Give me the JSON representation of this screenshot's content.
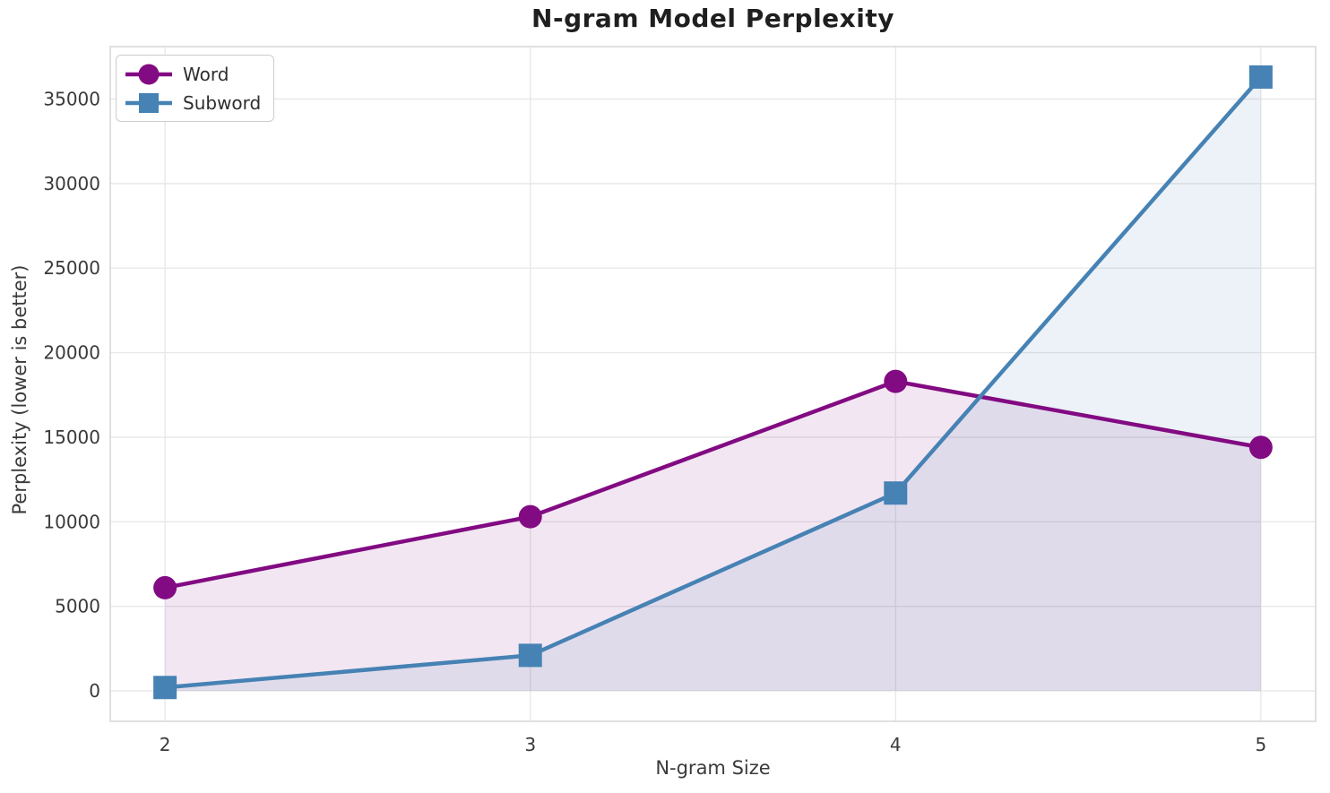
{
  "chart_data": {
    "type": "line",
    "title": "N-gram Model Perplexity",
    "xlabel": "N-gram Size",
    "ylabel": "Perplexity (lower is better)",
    "x": [
      2,
      3,
      4,
      5
    ],
    "x_tick_labels": [
      "2",
      "3",
      "4",
      "5"
    ],
    "y_ticks": [
      0,
      5000,
      10000,
      15000,
      20000,
      25000,
      30000,
      35000
    ],
    "y_tick_labels": [
      "0",
      "5000",
      "10000",
      "15000",
      "20000",
      "25000",
      "30000",
      "35000"
    ],
    "xlim": [
      1.85,
      5.15
    ],
    "ylim": [
      -1800,
      38100
    ],
    "grid": true,
    "legend": {
      "position": "upper-left",
      "entries": [
        "Word",
        "Subword"
      ]
    },
    "series": [
      {
        "name": "Word",
        "marker": "circle",
        "color": "#820a82",
        "fill_color": "rgba(130,10,130,0.10)",
        "values": [
          6100,
          10300,
          18300,
          14400
        ],
        "filled_to_zero": true
      },
      {
        "name": "Subword",
        "marker": "square",
        "color": "#4682b4",
        "fill_color": "rgba(70,130,180,0.10)",
        "values": [
          200,
          2100,
          11700,
          36300
        ],
        "filled_to_zero": true
      }
    ],
    "styles": {
      "background": "#ffffff",
      "grid_color": "#e8e8e8",
      "spine_color": "#d8d8d8",
      "tick_color": "#3a3a3a",
      "title_color": "#1f1f1f"
    }
  }
}
